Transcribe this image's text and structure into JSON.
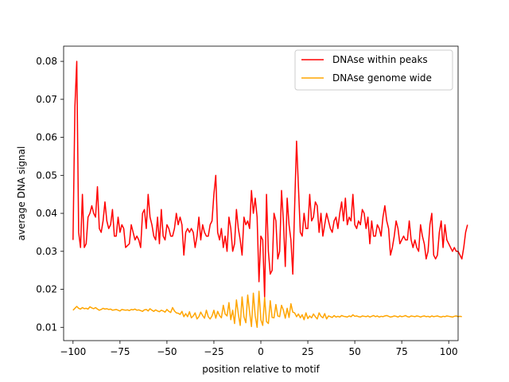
{
  "chart_data": {
    "type": "line",
    "title": "",
    "xlabel": "position relative to motif",
    "ylabel": "average DNA signal",
    "xlim": [
      -105,
      105
    ],
    "ylim": [
      0.0065,
      0.084
    ],
    "xticks": [
      -100,
      -75,
      -50,
      -25,
      0,
      25,
      50,
      75,
      100
    ],
    "xtick_labels": [
      "−100",
      "−75",
      "−50",
      "−25",
      "0",
      "25",
      "50",
      "75",
      "100"
    ],
    "yticks": [
      0.01,
      0.02,
      0.03,
      0.04,
      0.05,
      0.06,
      0.07,
      0.08
    ],
    "ytick_labels": [
      "0.01",
      "0.02",
      "0.03",
      "0.04",
      "0.05",
      "0.06",
      "0.07",
      "0.08"
    ],
    "grid": false,
    "legend_position": "top-right",
    "x_start": -100,
    "x_step": 1,
    "series": [
      {
        "name": "DNAse within peaks",
        "color": "#ff0000",
        "values": [
          0.033,
          0.068,
          0.08,
          0.035,
          0.031,
          0.045,
          0.031,
          0.032,
          0.039,
          0.04,
          0.042,
          0.04,
          0.039,
          0.047,
          0.036,
          0.035,
          0.038,
          0.043,
          0.038,
          0.036,
          0.037,
          0.041,
          0.034,
          0.034,
          0.039,
          0.035,
          0.037,
          0.036,
          0.031,
          0.0315,
          0.032,
          0.037,
          0.035,
          0.033,
          0.034,
          0.033,
          0.031,
          0.04,
          0.041,
          0.036,
          0.045,
          0.039,
          0.037,
          0.034,
          0.033,
          0.039,
          0.032,
          0.041,
          0.034,
          0.033,
          0.037,
          0.036,
          0.034,
          0.034,
          0.036,
          0.04,
          0.037,
          0.039,
          0.037,
          0.029,
          0.035,
          0.036,
          0.035,
          0.036,
          0.035,
          0.031,
          0.034,
          0.039,
          0.033,
          0.037,
          0.035,
          0.034,
          0.034,
          0.037,
          0.038,
          0.045,
          0.05,
          0.035,
          0.033,
          0.036,
          0.031,
          0.034,
          0.03,
          0.039,
          0.036,
          0.03,
          0.032,
          0.041,
          0.036,
          0.033,
          0.029,
          0.039,
          0.037,
          0.038,
          0.036,
          0.046,
          0.04,
          0.044,
          0.039,
          0.022,
          0.034,
          0.033,
          0.018,
          0.045,
          0.03,
          0.024,
          0.025,
          0.04,
          0.038,
          0.028,
          0.03,
          0.046,
          0.038,
          0.026,
          0.044,
          0.037,
          0.033,
          0.024,
          0.042,
          0.059,
          0.047,
          0.035,
          0.034,
          0.04,
          0.036,
          0.036,
          0.045,
          0.038,
          0.039,
          0.043,
          0.042,
          0.035,
          0.04,
          0.034,
          0.037,
          0.04,
          0.038,
          0.036,
          0.035,
          0.038,
          0.039,
          0.036,
          0.04,
          0.043,
          0.038,
          0.044,
          0.037,
          0.039,
          0.038,
          0.045,
          0.037,
          0.036,
          0.038,
          0.037,
          0.041,
          0.04,
          0.036,
          0.039,
          0.032,
          0.038,
          0.034,
          0.034,
          0.037,
          0.036,
          0.034,
          0.039,
          0.042,
          0.038,
          0.036,
          0.029,
          0.031,
          0.034,
          0.038,
          0.036,
          0.032,
          0.033,
          0.034,
          0.033,
          0.033,
          0.038,
          0.033,
          0.031,
          0.033,
          0.031,
          0.03,
          0.037,
          0.034,
          0.032,
          0.028,
          0.03,
          0.037,
          0.04,
          0.029,
          0.028,
          0.029,
          0.035,
          0.038,
          0.031,
          0.037,
          0.033,
          0.032,
          0.031,
          0.03,
          0.031,
          0.03,
          0.03,
          0.029,
          0.028,
          0.031,
          0.035,
          0.037
        ]
      },
      {
        "name": "DNAse genome wide",
        "color": "#ffa500",
        "values": [
          0.0145,
          0.015,
          0.0155,
          0.015,
          0.0148,
          0.0152,
          0.0149,
          0.015,
          0.0148,
          0.0154,
          0.0151,
          0.0149,
          0.0152,
          0.0148,
          0.0145,
          0.0147,
          0.015,
          0.0148,
          0.0149,
          0.0147,
          0.0148,
          0.0145,
          0.0146,
          0.0147,
          0.0145,
          0.0143,
          0.0147,
          0.0146,
          0.0145,
          0.0146,
          0.0144,
          0.0147,
          0.0146,
          0.0148,
          0.0145,
          0.0146,
          0.0144,
          0.0142,
          0.0146,
          0.0147,
          0.0143,
          0.0149,
          0.0145,
          0.0142,
          0.0146,
          0.0143,
          0.0141,
          0.0145,
          0.0143,
          0.014,
          0.0147,
          0.0142,
          0.0139,
          0.0152,
          0.0143,
          0.0138,
          0.0137,
          0.0134,
          0.0142,
          0.0128,
          0.0136,
          0.0128,
          0.0141,
          0.0125,
          0.013,
          0.0138,
          0.0122,
          0.0128,
          0.014,
          0.0131,
          0.0124,
          0.0145,
          0.0128,
          0.0122,
          0.013,
          0.0145,
          0.0124,
          0.0142,
          0.0131,
          0.0125,
          0.0158,
          0.0135,
          0.013,
          0.0165,
          0.012,
          0.0145,
          0.011,
          0.0172,
          0.0135,
          0.0105,
          0.018,
          0.0128,
          0.0112,
          0.0185,
          0.014,
          0.0102,
          0.019,
          0.013,
          0.01,
          0.0195,
          0.012,
          0.0105,
          0.0178,
          0.0115,
          0.011,
          0.017,
          0.0126,
          0.0125,
          0.016,
          0.013,
          0.0128,
          0.0158,
          0.0145,
          0.0124,
          0.015,
          0.0126,
          0.0162,
          0.014,
          0.0138,
          0.0128,
          0.0135,
          0.0125,
          0.0133,
          0.012,
          0.0138,
          0.0123,
          0.013,
          0.0125,
          0.0135,
          0.0128,
          0.0122,
          0.0138,
          0.0129,
          0.0125,
          0.0136,
          0.0122,
          0.013,
          0.0128,
          0.0126,
          0.0131,
          0.0127,
          0.0129,
          0.0127,
          0.0131,
          0.0129,
          0.0128,
          0.0127,
          0.013,
          0.0128,
          0.0133,
          0.0129,
          0.013,
          0.0128,
          0.0127,
          0.013,
          0.0129,
          0.0128,
          0.013,
          0.0127,
          0.0129,
          0.0131,
          0.0128,
          0.013,
          0.0127,
          0.0129,
          0.0128,
          0.013,
          0.0131,
          0.0129,
          0.0127,
          0.0128,
          0.013,
          0.0129,
          0.0127,
          0.013,
          0.0128,
          0.0129,
          0.0131,
          0.0128,
          0.0127,
          0.013,
          0.0129,
          0.0128,
          0.013,
          0.0129,
          0.0127,
          0.0129,
          0.013,
          0.0128,
          0.0129,
          0.0127,
          0.013,
          0.0128,
          0.0129,
          0.013,
          0.0128,
          0.0127,
          0.0129,
          0.0128,
          0.013,
          0.0129,
          0.0128,
          0.0127,
          0.0129,
          0.013,
          0.0128,
          0.0129,
          0.0128
        ]
      }
    ]
  }
}
